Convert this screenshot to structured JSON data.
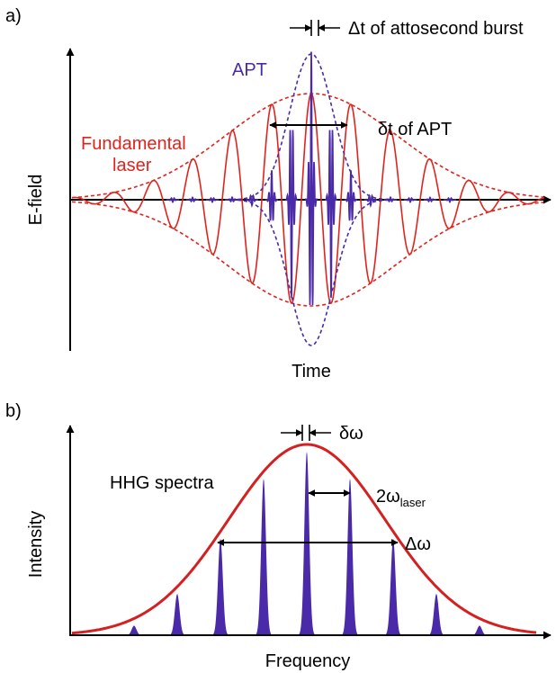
{
  "panel_a": {
    "label": "a)",
    "y_label": "E-field",
    "x_label": "Time",
    "apt_label": "APT",
    "fundamental_label_line1": "Fundamental",
    "fundamental_label_line2": "laser",
    "burst_annotation": "Δt of attosecond burst",
    "apt_duration_annotation": "δt of APT"
  },
  "panel_b": {
    "label": "b)",
    "y_label": "Intensity",
    "x_label": "Frequency",
    "spectra_label": "HHG spectra",
    "harmonic_width_annotation": "δω",
    "spacing_annotation_main": "2ω",
    "spacing_annotation_sub": "laser",
    "bandwidth_annotation": "Δω"
  },
  "colors": {
    "fundamental": "#e0231c",
    "apt": "#4a2aa8",
    "envelope_b": "#d42020",
    "harmonic_fill": "#4a2aa8",
    "axis": "#000000"
  }
}
